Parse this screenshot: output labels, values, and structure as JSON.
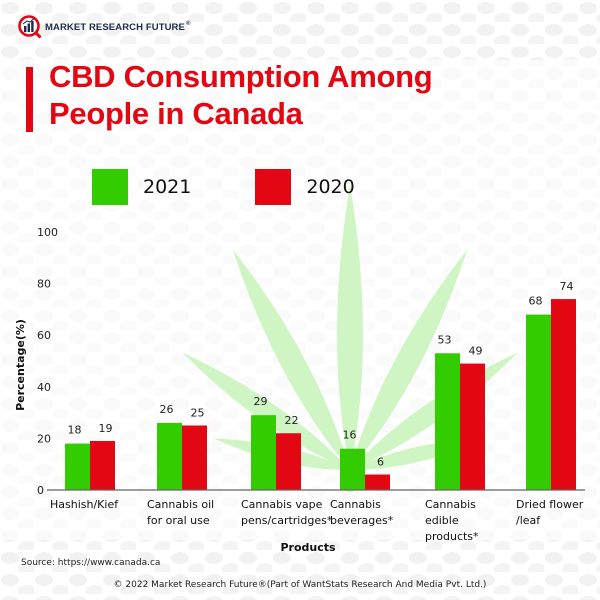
{
  "brand": {
    "name": "MARKET RESEARCH FUTURE",
    "registered_mark": "®"
  },
  "colors": {
    "accent": "#e30613",
    "series_2021": "#33cc00",
    "series_2020": "#e30613",
    "leaf": "#ccf5c0"
  },
  "chart_data": {
    "type": "bar",
    "title": "CBD Consumption Among People in Canada",
    "title_lines": [
      "CBD Consumption Among",
      "People in Canada"
    ],
    "xlabel": "Products",
    "ylabel": "Percentage(%)",
    "ylim": [
      0,
      100
    ],
    "yticks": [
      0,
      20,
      40,
      60,
      80,
      100
    ],
    "grid": false,
    "legend_position": "top",
    "categories": [
      "Hashish/Kief",
      "Cannabis oil for oral use",
      "Cannabis vape pens/cartridges*",
      "Cannabis beverages*",
      "Cannabis edible products*",
      "Dried flower /leaf"
    ],
    "category_lines": [
      [
        "Hashish/Kief"
      ],
      [
        "Cannabis oil",
        "for oral use"
      ],
      [
        "Cannabis vape",
        "pens/cartridges*"
      ],
      [
        "Cannabis",
        "beverages*"
      ],
      [
        "Cannabis",
        "edible",
        "products*"
      ],
      [
        "Dried flower",
        "/leaf"
      ]
    ],
    "series": [
      {
        "name": "2021",
        "color": "#33cc00",
        "values": [
          18,
          26,
          29,
          16,
          53,
          68
        ]
      },
      {
        "name": "2020",
        "color": "#e30613",
        "values": [
          19,
          25,
          22,
          6,
          49,
          74
        ]
      }
    ]
  },
  "source": "Source: https://www.canada.ca",
  "footer": "© 2022 Market Research Future®(Part of WantStats Research And Media Pvt. Ltd.)"
}
